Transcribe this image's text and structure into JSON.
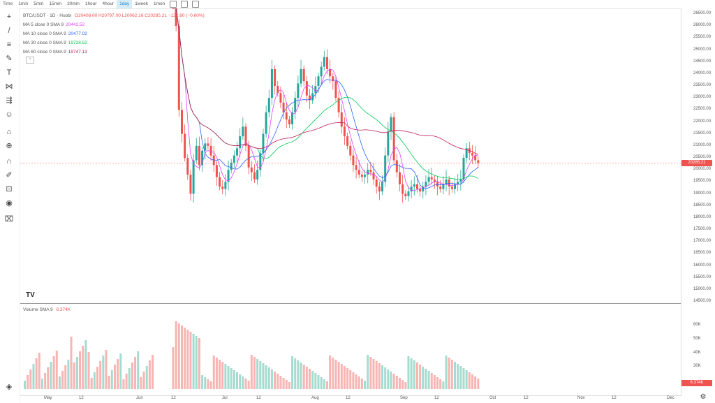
{
  "toolbar": {
    "timeframes": [
      "Time",
      "1min",
      "5min",
      "15min",
      "30min",
      "1hour",
      "4hour",
      "1day",
      "1week",
      "1mon"
    ],
    "active": "1day"
  },
  "legend": {
    "title": "BTC/USDT · 1D · Huobi",
    "ohlc": "O20408.00 H20797.00 L20062.16 C20285.21 −122.80 (−0.60%)",
    "ma": [
      {
        "label": "MA 5 close 0 SMA 9",
        "value": "20442.52",
        "color": "#e040fb"
      },
      {
        "label": "MA 10 close 0 SMA 9",
        "value": "20477.02",
        "color": "#2962ff"
      },
      {
        "label": "MA 30 close 0 SMA 9",
        "value": "19728.52",
        "color": "#00c853"
      },
      {
        "label": "MA 60 close 0 SMA 9",
        "value": "19747.13",
        "color": "#c2185b"
      }
    ],
    "toggle": "^"
  },
  "volume_legend": {
    "label": "Volume SMA 9",
    "value": "6.374K"
  },
  "price_axis": [
    "26500.00",
    "26000.00",
    "25500.00",
    "25000.00",
    "24500.00",
    "24000.00",
    "23500.00",
    "23000.00",
    "22500.00",
    "22000.00",
    "21500.00",
    "21000.00",
    "20500.00",
    "20000.00",
    "19500.00",
    "19000.00",
    "18500.00",
    "18000.00",
    "17500.00",
    "17000.00",
    "16500.00",
    "16000.00",
    "15500.00",
    "15000.00",
    "14500.00"
  ],
  "last_price": "20285.21",
  "volume_axis": [
    "60K",
    "50K",
    "40K",
    "30K"
  ],
  "volume_tag": "6.374K",
  "x_axis": [
    "May",
    "12",
    "Jun",
    "12",
    "Jul",
    "12",
    "Aug",
    "12",
    "Sep",
    "12",
    "Oct",
    "12",
    "Nov",
    "12",
    "Dec"
  ],
  "logo": "TV",
  "colors": {
    "up": "#26a69a",
    "down": "#ef5350",
    "up_vol": "#a5dcd0",
    "down_vol": "#f7b5b3"
  },
  "chart_data": {
    "type": "candlestick",
    "title": "BTC/USDT · 1D · Huobi",
    "ylim": [
      14500,
      26500
    ],
    "candles_close": [
      29000,
      26000,
      22500,
      21500,
      20500,
      19800,
      19000,
      20400,
      21000,
      20200,
      20800,
      21100,
      21000,
      20600,
      20200,
      19700,
      19300,
      19200,
      19500,
      20000,
      20300,
      20600,
      20900,
      21400,
      21800,
      21000,
      20100,
      19900,
      19600,
      20000,
      20700,
      21500,
      22400,
      23000,
      24200,
      23500,
      23200,
      22800,
      22400,
      22100,
      21900,
      22400,
      23000,
      23600,
      24200,
      23700,
      23100,
      22900,
      23200,
      23500,
      23900,
      24300,
      24700,
      24200,
      23900,
      23700,
      23000,
      22400,
      21800,
      21400,
      21000,
      20600,
      20200,
      20000,
      19800,
      19700,
      19800,
      20000,
      19900,
      19600,
      19300,
      19100,
      19500,
      20600,
      21600,
      22200,
      20400,
      19900,
      19400,
      19000,
      18900,
      19100,
      19300,
      19400,
      19200,
      19100,
      19300,
      19500,
      19700,
      19600,
      19500,
      19300,
      19200,
      19400,
      19600,
      19300,
      19200,
      19400,
      19500,
      19600,
      20500,
      20900,
      20700,
      20600,
      20400,
      20285
    ]
  }
}
